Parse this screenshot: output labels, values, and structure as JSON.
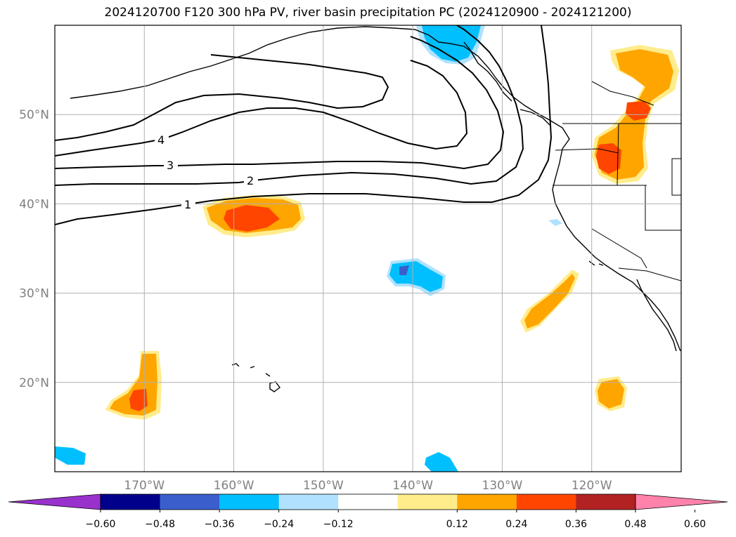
{
  "title": "2024120700 F120 300 hPa PV, river basin precipitation PC (2024120900 - 2024121200)",
  "map": {
    "lon_range": [
      -180,
      -110
    ],
    "lat_range": [
      10,
      60
    ],
    "lat_ticks": [
      {
        "value": 50,
        "label": "50°N"
      },
      {
        "value": 40,
        "label": "40°N"
      },
      {
        "value": 30,
        "label": "30°N"
      },
      {
        "value": 20,
        "label": "20°N"
      }
    ],
    "lon_ticks": [
      {
        "value": -170,
        "label": "170°W"
      },
      {
        "value": -160,
        "label": "160°W"
      },
      {
        "value": -150,
        "label": "150°W"
      },
      {
        "value": -140,
        "label": "140°W"
      },
      {
        "value": -130,
        "label": "130°W"
      },
      {
        "value": -120,
        "label": "120°W"
      }
    ],
    "grid": true,
    "pv_contour_labels": [
      "1",
      "2",
      "3",
      "4"
    ]
  },
  "colorbar": {
    "colors": [
      "#9932cc",
      "#00008b",
      "#3a5fcd",
      "#00bfff",
      "#b0e2ff",
      "#ffffff",
      "#ffec8b",
      "#ffa500",
      "#ff4500",
      "#b22222",
      "#ff82ab"
    ],
    "tick_labels": [
      "−0.60",
      "−0.48",
      "−0.36",
      "−0.24",
      "−0.12",
      "0.12",
      "0.24",
      "0.36",
      "0.48",
      "0.60"
    ]
  }
}
